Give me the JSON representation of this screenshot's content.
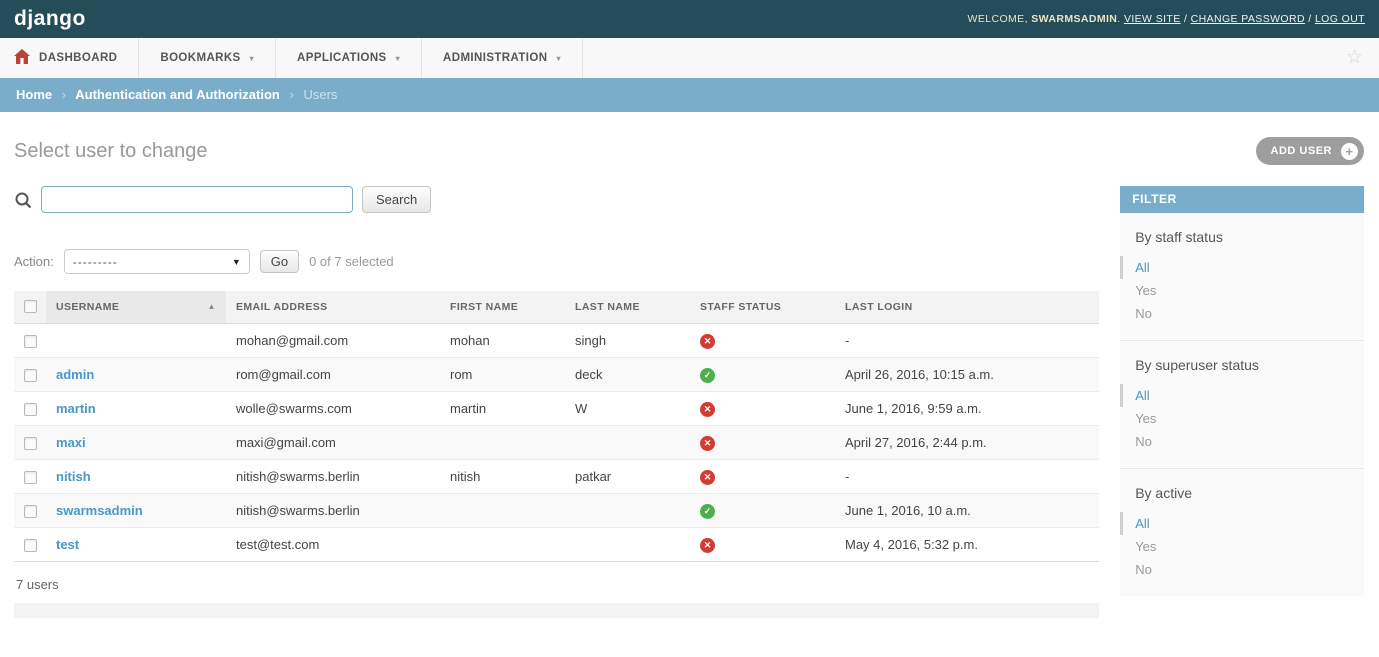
{
  "header": {
    "logo": "django",
    "welcome_prefix": "WELCOME,",
    "username": "SWARMSADMIN",
    "username_suffix": ".",
    "links": [
      "VIEW SITE",
      "CHANGE PASSWORD",
      "LOG OUT"
    ],
    "link_separator": "/"
  },
  "nav": {
    "items": [
      {
        "label": "DASHBOARD"
      },
      {
        "label": "BOOKMARKS"
      },
      {
        "label": "APPLICATIONS"
      },
      {
        "label": "ADMINISTRATION"
      }
    ]
  },
  "breadcrumb": {
    "items": [
      "Home",
      "Authentication and Authorization",
      "Users"
    ],
    "separator": "›"
  },
  "page": {
    "title": "Select user to change",
    "add_button": "ADD USER"
  },
  "search": {
    "value": "",
    "placeholder": "",
    "button": "Search"
  },
  "actions": {
    "label": "Action:",
    "selected": "---------",
    "go": "Go",
    "counter": "0 of 7 selected"
  },
  "table": {
    "columns": [
      "USERNAME",
      "EMAIL ADDRESS",
      "FIRST NAME",
      "LAST NAME",
      "STAFF STATUS",
      "LAST LOGIN"
    ],
    "sorted_column": "USERNAME",
    "sort_direction": "asc",
    "rows": [
      {
        "username": "",
        "email": "mohan@gmail.com",
        "first_name": "mohan",
        "last_name": "singh",
        "staff": false,
        "last_login": "-"
      },
      {
        "username": "admin",
        "email": "rom@gmail.com",
        "first_name": "rom",
        "last_name": "deck",
        "staff": true,
        "last_login": "April 26, 2016, 10:15 a.m."
      },
      {
        "username": "martin",
        "email": "wolle@swarms.com",
        "first_name": "martin",
        "last_name": "W",
        "staff": false,
        "last_login": "June 1, 2016, 9:59 a.m."
      },
      {
        "username": "maxi",
        "email": "maxi@gmail.com",
        "first_name": "",
        "last_name": "",
        "staff": false,
        "last_login": "April 27, 2016, 2:44 p.m."
      },
      {
        "username": "nitish",
        "email": "nitish@swarms.berlin",
        "first_name": "nitish",
        "last_name": "patkar",
        "staff": false,
        "last_login": "-"
      },
      {
        "username": "swarmsadmin",
        "email": "nitish@swarms.berlin",
        "first_name": "",
        "last_name": "",
        "staff": true,
        "last_login": "June 1, 2016, 10 a.m."
      },
      {
        "username": "test",
        "email": "test@test.com",
        "first_name": "",
        "last_name": "",
        "staff": false,
        "last_login": "May 4, 2016, 5:32 p.m."
      }
    ],
    "summary": "7 users"
  },
  "filter": {
    "title": "FILTER",
    "groups": [
      {
        "heading": "By staff status",
        "options": [
          "All",
          "Yes",
          "No"
        ],
        "selected": "All"
      },
      {
        "heading": "By superuser status",
        "options": [
          "All",
          "Yes",
          "No"
        ],
        "selected": "All"
      },
      {
        "heading": "By active",
        "options": [
          "All",
          "Yes",
          "No"
        ],
        "selected": "All"
      }
    ]
  },
  "icons": {
    "home": "home-icon",
    "star": "☆",
    "caret_down": "▾",
    "select_caret": "▼",
    "sort_asc": "▲",
    "check": "✓",
    "cross": "✕",
    "plus": "+"
  },
  "colors": {
    "topbar": "#254c59",
    "accent_blue": "#7aadca",
    "link_blue": "#4798c5",
    "status_yes_green": "#4faf4e",
    "status_no_red": "#cf3e36",
    "add_button_gray": "#9e9e9e",
    "welcome_cream": "#e9e4c1"
  }
}
